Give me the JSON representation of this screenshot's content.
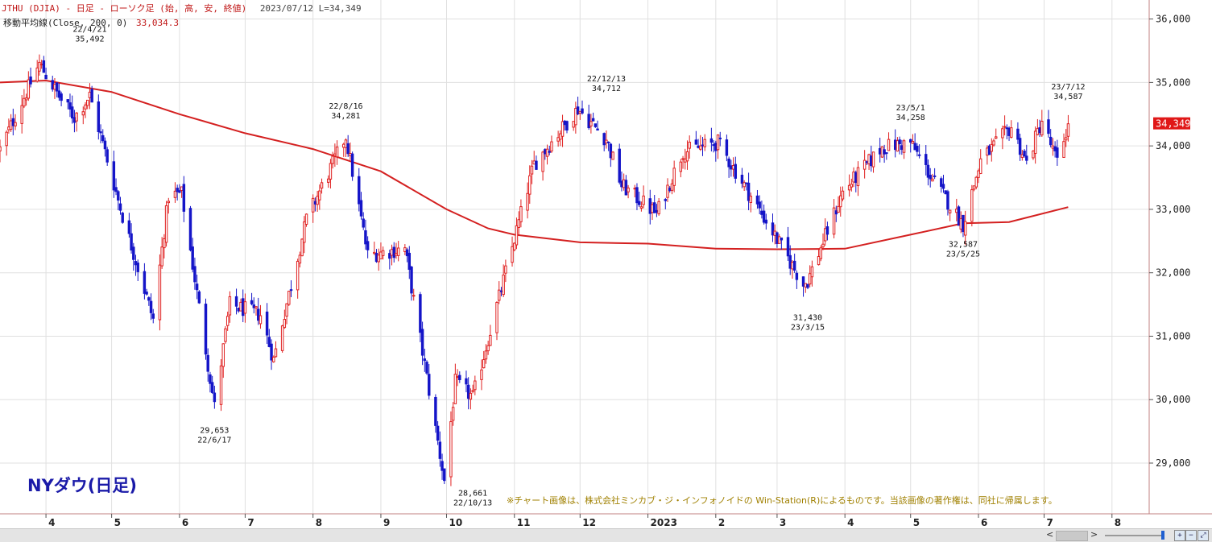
{
  "header": {
    "line1": "JTHU (DJIA) - 日足 - ローソク足 (始, 高, 安, 終値)",
    "line1_meta": "2023/07/12 L=34,349",
    "line2_label": "移動平均線(Close, 200, 0)",
    "line2_value": "33,034.3"
  },
  "title_overlay": "NYダウ(日足)",
  "credit": "※チャート画像は、株式会社ミンカブ・ジ・インフォノイドの Win-Station(R)によるものです。当該画像の著作権は、同社に帰属します。",
  "colors": {
    "up": "#e02020",
    "down": "#1515c8",
    "ma": "#d42020",
    "grid": "#e0e0e0",
    "axis": "#c08080",
    "last_price_bg": "#e01818"
  },
  "toolbar": {
    "scroll_left": "<",
    "scroll_right": ">",
    "tool1_icon": "zoom-in-icon",
    "tool2_icon": "zoom-out-icon",
    "tool3_icon": "fit-icon"
  },
  "chart_data": {
    "type": "candlestick",
    "symbol": "JTHU (DJIA)",
    "y_axis": {
      "range": [
        28200,
        36300
      ],
      "ticks": [
        29000,
        30000,
        31000,
        32000,
        33000,
        34000,
        35000,
        36000
      ],
      "tick_labels": [
        "29,000",
        "30,000",
        "31,000",
        "32,000",
        "33,000",
        "34,000",
        "35,000",
        "36,000"
      ],
      "position": "right"
    },
    "x_axis": {
      "range": [
        "2022-03-11",
        "2023-08-18"
      ],
      "month_labels": [
        {
          "date": "2022-04-01",
          "label": "4"
        },
        {
          "date": "2022-05-01",
          "label": "5"
        },
        {
          "date": "2022-06-01",
          "label": "6"
        },
        {
          "date": "2022-07-01",
          "label": "7"
        },
        {
          "date": "2022-08-01",
          "label": "8"
        },
        {
          "date": "2022-09-01",
          "label": "9"
        },
        {
          "date": "2022-10-01",
          "label": "10"
        },
        {
          "date": "2022-11-01",
          "label": "11"
        },
        {
          "date": "2022-12-01",
          "label": "12"
        },
        {
          "date": "2023-01-01",
          "label": "2023"
        },
        {
          "date": "2023-02-01",
          "label": "2"
        },
        {
          "date": "2023-03-01",
          "label": "3"
        },
        {
          "date": "2023-04-01",
          "label": "4"
        },
        {
          "date": "2023-05-01",
          "label": "5"
        },
        {
          "date": "2023-06-01",
          "label": "6"
        },
        {
          "date": "2023-07-01",
          "label": "7"
        },
        {
          "date": "2023-08-01",
          "label": "8"
        }
      ]
    },
    "grid": true,
    "close_path": [
      [
        "2022-03-11",
        33944
      ],
      [
        "2022-03-29",
        35294
      ],
      [
        "2022-04-08",
        34721
      ],
      [
        "2022-04-14",
        34451
      ],
      [
        "2022-04-21",
        34793
      ],
      [
        "2022-05-06",
        32899
      ],
      [
        "2022-05-20",
        31262
      ],
      [
        "2022-05-27",
        33212
      ],
      [
        "2022-06-02",
        33248
      ],
      [
        "2022-06-17",
        29888
      ],
      [
        "2022-06-24",
        31500
      ],
      [
        "2022-07-08",
        31338
      ],
      [
        "2022-07-14",
        30630
      ],
      [
        "2022-07-29",
        32845
      ],
      [
        "2022-08-16",
        34152
      ],
      [
        "2022-08-26",
        32283
      ],
      [
        "2022-09-12",
        32381
      ],
      [
        "2022-09-30",
        28725
      ],
      [
        "2022-10-05",
        30273
      ],
      [
        "2022-10-13",
        30038
      ],
      [
        "2022-11-10",
        33715
      ],
      [
        "2022-11-30",
        34589
      ],
      [
        "2022-12-13",
        34108
      ],
      [
        "2022-12-20",
        33376
      ],
      [
        "2023-01-05",
        32930
      ],
      [
        "2023-01-17",
        33910
      ],
      [
        "2023-02-02",
        34053
      ],
      [
        "2023-02-24",
        32816
      ],
      [
        "2023-03-13",
        31819
      ],
      [
        "2023-03-15",
        31875
      ],
      [
        "2023-03-31",
        33274
      ],
      [
        "2023-04-18",
        33976
      ],
      [
        "2023-05-01",
        34051
      ],
      [
        "2023-05-10",
        33531
      ],
      [
        "2023-05-25",
        32764
      ],
      [
        "2023-06-02",
        33762
      ],
      [
        "2023-06-16",
        34299
      ],
      [
        "2023-06-23",
        33727
      ],
      [
        "2023-06-30",
        34407
      ],
      [
        "2023-07-07",
        33734
      ],
      [
        "2023-07-12",
        34349
      ]
    ],
    "series": [
      {
        "name": "移動平均線(Close, 200, 0)",
        "type": "line",
        "points": [
          [
            "2022-03-11",
            35000
          ],
          [
            "2022-04-01",
            35030
          ],
          [
            "2022-05-01",
            34850
          ],
          [
            "2022-06-01",
            34500
          ],
          [
            "2022-07-01",
            34200
          ],
          [
            "2022-08-01",
            33950
          ],
          [
            "2022-09-01",
            33600
          ],
          [
            "2022-10-01",
            33000
          ],
          [
            "2022-10-20",
            32700
          ],
          [
            "2022-11-01",
            32600
          ],
          [
            "2022-12-01",
            32480
          ],
          [
            "2023-01-01",
            32460
          ],
          [
            "2023-02-01",
            32380
          ],
          [
            "2023-03-01",
            32370
          ],
          [
            "2023-04-01",
            32380
          ],
          [
            "2023-05-01",
            32600
          ],
          [
            "2023-05-25",
            32780
          ],
          [
            "2023-06-15",
            32800
          ],
          [
            "2023-07-12",
            33034.3
          ]
        ]
      }
    ],
    "last_price": {
      "value": 34349,
      "label": "34,349"
    },
    "annotations": [
      {
        "date": "2022-04-21",
        "value": 35492,
        "date_label": "22/4/21",
        "value_label": "35,492",
        "place": "above"
      },
      {
        "date": "2022-06-17",
        "value": 29653,
        "date_label": "22/6/17",
        "value_label": "29,653",
        "place": "below"
      },
      {
        "date": "2022-08-16",
        "value": 34281,
        "date_label": "22/8/16",
        "value_label": "34,281",
        "place": "above"
      },
      {
        "date": "2022-10-13",
        "value": 28661,
        "date_label": "22/10/13",
        "value_label": "28,661",
        "place": "below"
      },
      {
        "date": "2022-12-13",
        "value": 34712,
        "date_label": "22/12/13",
        "value_label": "34,712",
        "place": "above"
      },
      {
        "date": "2023-03-15",
        "value": 31430,
        "date_label": "23/3/15",
        "value_label": "31,430",
        "place": "below"
      },
      {
        "date": "2023-05-01",
        "value": 34258,
        "date_label": "23/5/1",
        "value_label": "34,258",
        "place": "above"
      },
      {
        "date": "2023-05-25",
        "value": 32587,
        "date_label": "23/5/25",
        "value_label": "32,587",
        "place": "below"
      },
      {
        "date": "2023-07-12",
        "value": 34587,
        "date_label": "23/7/12",
        "value_label": "34,587",
        "place": "above"
      }
    ]
  }
}
